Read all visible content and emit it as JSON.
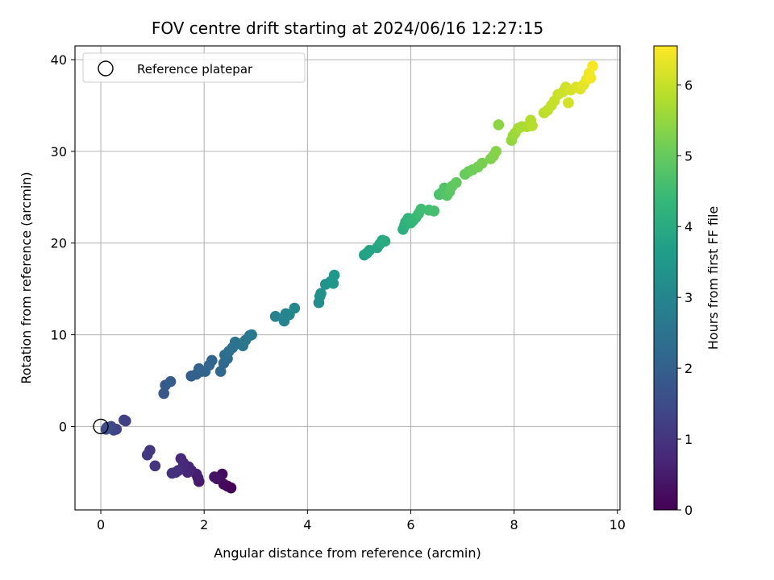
{
  "chart_data": {
    "type": "scatter",
    "title": "FOV centre drift starting at 2024/06/16 12:27:15",
    "xlabel": "Angular distance from reference (arcmin)",
    "ylabel": "Rotation from reference (arcmin)",
    "xlim": [
      -0.5,
      10.05
    ],
    "ylim": [
      -9.1,
      41.5
    ],
    "xticks": [
      0,
      2,
      4,
      6,
      8,
      10
    ],
    "yticks": [
      0,
      10,
      20,
      30,
      40
    ],
    "xtick_labels": [
      "0",
      "2",
      "4",
      "6",
      "8",
      "10"
    ],
    "ytick_labels": [
      "0",
      "10",
      "20",
      "30",
      "40"
    ],
    "grid": true,
    "legend": {
      "placement": "top-left",
      "entries": [
        {
          "label": "Reference platepar",
          "marker": "open-circle"
        }
      ]
    },
    "reference_point": {
      "x": 0,
      "y": 0
    },
    "colorbar": {
      "label": "Hours from first FF file",
      "colormap": "viridis",
      "range": [
        0,
        6.55
      ],
      "ticks": [
        0,
        1,
        2,
        3,
        4,
        5,
        6
      ],
      "tick_labels": [
        "0",
        "1",
        "2",
        "3",
        "4",
        "5",
        "6"
      ]
    },
    "series": [
      {
        "points": [
          [
            2.52,
            -6.7,
            0.05
          ],
          [
            2.45,
            -6.5,
            0.1
          ],
          [
            2.38,
            -6.3,
            0.15
          ],
          [
            2.35,
            -5.2,
            0.2
          ],
          [
            2.3,
            -5.5,
            0.25
          ],
          [
            2.25,
            -5.7,
            0.3
          ],
          [
            2.2,
            -5.5,
            0.35
          ],
          [
            1.9,
            -6.0,
            0.45
          ],
          [
            1.88,
            -5.6,
            0.5
          ],
          [
            1.85,
            -5.2,
            0.55
          ],
          [
            1.75,
            -4.8,
            0.6
          ],
          [
            1.7,
            -4.4,
            0.65
          ],
          [
            1.68,
            -5.0,
            0.7
          ],
          [
            1.6,
            -4.0,
            0.75
          ],
          [
            1.55,
            -3.5,
            0.8
          ],
          [
            1.5,
            -4.8,
            0.85
          ],
          [
            1.45,
            -5.0,
            0.9
          ],
          [
            1.38,
            -5.1,
            0.95
          ],
          [
            1.05,
            -4.3,
            1.0
          ],
          [
            0.95,
            -2.6,
            1.05
          ],
          [
            0.9,
            -3.1,
            1.1
          ],
          [
            0.48,
            0.6,
            1.2
          ],
          [
            0.45,
            0.7,
            1.25
          ],
          [
            0.3,
            -0.3,
            1.3
          ],
          [
            0.25,
            -0.4,
            1.35
          ],
          [
            0.2,
            0.0,
            1.4
          ],
          [
            0.15,
            -0.2,
            1.45
          ],
          [
            0.12,
            -0.1,
            1.5
          ],
          [
            0.1,
            -0.3,
            1.55
          ],
          [
            1.22,
            3.6,
            1.8
          ],
          [
            1.25,
            4.5,
            1.85
          ],
          [
            1.35,
            4.9,
            1.9
          ],
          [
            1.75,
            5.5,
            1.95
          ],
          [
            1.85,
            5.7,
            2.0
          ],
          [
            1.9,
            6.3,
            2.05
          ],
          [
            1.95,
            6.0,
            2.08
          ],
          [
            2.02,
            6.0,
            2.1
          ],
          [
            2.1,
            6.7,
            2.13
          ],
          [
            2.15,
            7.2,
            2.16
          ],
          [
            2.32,
            6.0,
            2.2
          ],
          [
            2.38,
            6.9,
            2.25
          ],
          [
            2.4,
            7.8,
            2.3
          ],
          [
            2.45,
            7.4,
            2.33
          ],
          [
            2.48,
            8.2,
            2.36
          ],
          [
            2.55,
            8.6,
            2.4
          ],
          [
            2.6,
            9.2,
            2.45
          ],
          [
            2.7,
            9.0,
            2.5
          ],
          [
            2.75,
            8.8,
            2.55
          ],
          [
            2.8,
            9.4,
            2.6
          ],
          [
            2.88,
            9.9,
            2.65
          ],
          [
            2.92,
            10.0,
            2.7
          ],
          [
            3.38,
            12.0,
            2.9
          ],
          [
            3.55,
            11.5,
            2.95
          ],
          [
            3.58,
            12.3,
            3.0
          ],
          [
            3.65,
            12.2,
            3.05
          ],
          [
            3.75,
            12.9,
            3.1
          ],
          [
            4.22,
            13.5,
            3.2
          ],
          [
            4.24,
            14.2,
            3.25
          ],
          [
            4.26,
            14.5,
            3.3
          ],
          [
            4.35,
            15.5,
            3.35
          ],
          [
            4.45,
            15.8,
            3.4
          ],
          [
            4.5,
            15.6,
            3.45
          ],
          [
            4.52,
            16.5,
            3.5
          ],
          [
            5.1,
            18.7,
            3.7
          ],
          [
            5.15,
            18.9,
            3.75
          ],
          [
            5.2,
            19.2,
            3.8
          ],
          [
            5.35,
            19.5,
            3.85
          ],
          [
            5.4,
            19.9,
            3.9
          ],
          [
            5.45,
            20.3,
            3.95
          ],
          [
            5.5,
            20.2,
            4.0
          ],
          [
            5.85,
            21.5,
            4.1
          ],
          [
            5.88,
            21.9,
            4.15
          ],
          [
            5.9,
            22.3,
            4.2
          ],
          [
            5.95,
            22.7,
            4.25
          ],
          [
            6.0,
            22.2,
            4.3
          ],
          [
            6.05,
            22.5,
            4.35
          ],
          [
            6.1,
            22.8,
            4.4
          ],
          [
            6.15,
            23.2,
            4.45
          ],
          [
            6.2,
            23.7,
            4.5
          ],
          [
            6.35,
            23.6,
            4.55
          ],
          [
            6.45,
            23.5,
            4.6
          ],
          [
            6.55,
            25.3,
            4.65
          ],
          [
            6.6,
            25.5,
            4.7
          ],
          [
            6.65,
            26.0,
            4.75
          ],
          [
            6.7,
            25.2,
            4.8
          ],
          [
            6.75,
            25.6,
            4.85
          ],
          [
            6.8,
            26.2,
            4.9
          ],
          [
            6.88,
            26.6,
            4.95
          ],
          [
            7.05,
            27.5,
            5.0
          ],
          [
            7.12,
            27.8,
            5.05
          ],
          [
            7.2,
            28.0,
            5.1
          ],
          [
            7.3,
            28.3,
            5.15
          ],
          [
            7.38,
            28.7,
            5.2
          ],
          [
            7.55,
            29.2,
            5.25
          ],
          [
            7.6,
            29.5,
            5.3
          ],
          [
            7.65,
            30.0,
            5.35
          ],
          [
            7.7,
            32.9,
            5.4
          ],
          [
            7.95,
            31.2,
            5.5
          ],
          [
            7.98,
            31.7,
            5.55
          ],
          [
            8.02,
            32.0,
            5.6
          ],
          [
            8.08,
            32.5,
            5.65
          ],
          [
            8.15,
            32.7,
            5.7
          ],
          [
            8.25,
            32.7,
            5.75
          ],
          [
            8.32,
            33.4,
            5.8
          ],
          [
            8.35,
            32.8,
            5.85
          ],
          [
            8.58,
            34.2,
            5.9
          ],
          [
            8.65,
            34.5,
            5.93
          ],
          [
            8.72,
            35.0,
            5.96
          ],
          [
            8.78,
            35.5,
            6.0
          ],
          [
            8.85,
            36.2,
            6.03
          ],
          [
            8.95,
            36.5,
            6.06
          ],
          [
            9.0,
            37.0,
            6.1
          ],
          [
            9.05,
            35.3,
            6.13
          ],
          [
            9.1,
            36.7,
            6.16
          ],
          [
            9.2,
            37.0,
            6.2
          ],
          [
            9.28,
            36.8,
            6.25
          ],
          [
            9.35,
            37.3,
            6.3
          ],
          [
            9.4,
            37.8,
            6.35
          ],
          [
            9.45,
            38.5,
            6.4
          ],
          [
            9.48,
            38.0,
            6.45
          ],
          [
            9.52,
            39.3,
            6.5
          ]
        ]
      }
    ]
  }
}
